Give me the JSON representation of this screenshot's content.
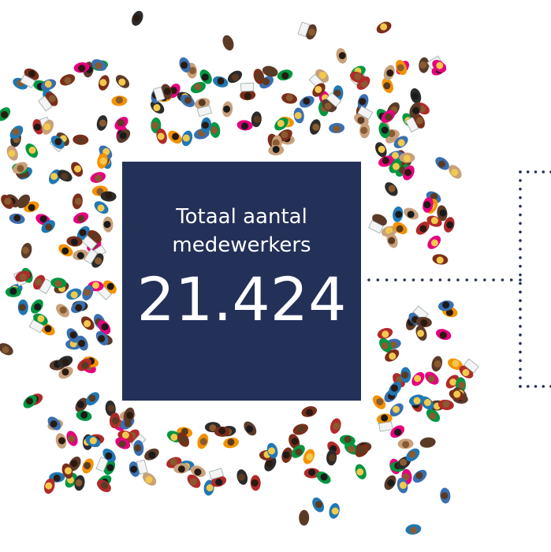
{
  "infographic": {
    "label": "Totaal aantal medewerkers",
    "value": "21.424"
  }
}
